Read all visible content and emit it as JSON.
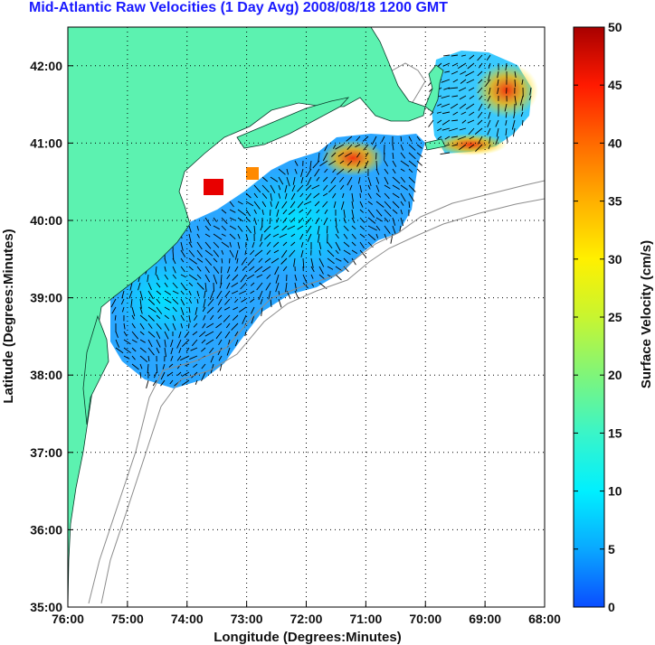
{
  "title": "Mid-Atlantic Raw Velocities (1 Day Avg) 2008/08/18 1200 GMT",
  "map": {
    "xlabel": "Longitude (Degrees:Minutes)",
    "ylabel": "Latitude (Degrees:Minutes)",
    "xlim": [
      -76,
      -68
    ],
    "ylim": [
      35,
      42.5
    ],
    "x_ticks": [
      {
        "value": -76,
        "label": "76:00"
      },
      {
        "value": -75,
        "label": "75:00"
      },
      {
        "value": -74,
        "label": "74:00"
      },
      {
        "value": -73,
        "label": "73:00"
      },
      {
        "value": -72,
        "label": "72:00"
      },
      {
        "value": -71,
        "label": "71:00"
      },
      {
        "value": -70,
        "label": "70:00"
      },
      {
        "value": -69,
        "label": "69:00"
      },
      {
        "value": -68,
        "label": "68:00"
      }
    ],
    "y_ticks": [
      {
        "value": 35,
        "label": "35:00"
      },
      {
        "value": 36,
        "label": "36:00"
      },
      {
        "value": 37,
        "label": "37:00"
      },
      {
        "value": 38,
        "label": "38:00"
      },
      {
        "value": 39,
        "label": "39:00"
      },
      {
        "value": 40,
        "label": "40:00"
      },
      {
        "value": 41,
        "label": "41:00"
      },
      {
        "value": 42,
        "label": "42:00"
      }
    ],
    "grid": true,
    "land_color": "#5cf2b0",
    "bathymetry_color": "#8c8c8c"
  },
  "colorbar": {
    "label": "Surface Velocity (cm/s)",
    "min": 0,
    "max": 50,
    "ticks": [
      0,
      5,
      10,
      15,
      20,
      25,
      30,
      35,
      40,
      45,
      50
    ],
    "colors": [
      "#0a4dff",
      "#0aa8ff",
      "#00f0ff",
      "#3af5c8",
      "#7ff57a",
      "#c8f530",
      "#fff000",
      "#ffb000",
      "#ff6a00",
      "#ff1a00",
      "#a80000"
    ]
  }
}
